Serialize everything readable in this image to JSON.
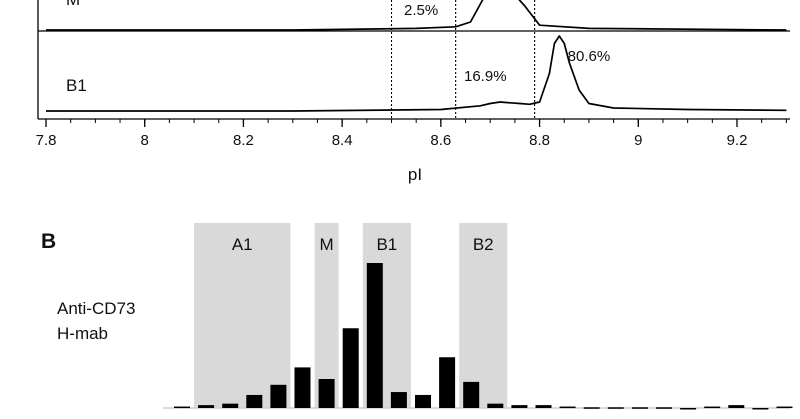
{
  "chart_data": [
    {
      "type": "line",
      "panel_label": "",
      "xlabel": "pI",
      "xlim": [
        7.8,
        9.3
      ],
      "x_ticks": [
        "7.8",
        "8",
        "8.2",
        "8.4",
        "8.6",
        "8.8",
        "9",
        "9.2"
      ],
      "dashed_lines_x": [
        8.5,
        8.63,
        8.79
      ],
      "series": [
        {
          "name": "M",
          "x": [
            7.8,
            8.3,
            8.55,
            8.63,
            8.66,
            8.69,
            8.7,
            8.71,
            8.73,
            8.75,
            8.77,
            8.8,
            8.9,
            9.3
          ],
          "y": [
            0,
            0,
            0.01,
            0.02,
            0.05,
            0.3,
            0.7,
            1.0,
            0.9,
            0.5,
            0.15,
            0.03,
            0.01,
            0
          ],
          "peak_labels": [
            "2.5%"
          ]
        },
        {
          "name": "B1",
          "x": [
            7.8,
            8.3,
            8.6,
            8.68,
            8.7,
            8.72,
            8.74,
            8.76,
            8.78,
            8.8,
            8.82,
            8.83,
            8.84,
            8.85,
            8.86,
            8.88,
            8.9,
            8.95,
            9.1,
            9.3
          ],
          "y": [
            0,
            0,
            0.02,
            0.07,
            0.1,
            0.12,
            0.11,
            0.1,
            0.09,
            0.12,
            0.5,
            0.9,
            1.0,
            0.9,
            0.65,
            0.28,
            0.1,
            0.04,
            0.02,
            0.01
          ],
          "peak_labels": [
            "16.9%",
            "80.6%"
          ]
        }
      ]
    },
    {
      "type": "bar",
      "panel_label": "B",
      "series_label": [
        "Anti-CD73",
        "H-mab"
      ],
      "regions": [
        "A1",
        "M",
        "B1",
        "B2"
      ],
      "values": [
        0.01,
        0.02,
        0.03,
        0.09,
        0.16,
        0.28,
        0.2,
        0.55,
        1.0,
        0.11,
        0.09,
        0.35,
        0.18,
        0.03,
        0.02,
        0.02,
        0.01,
        0.005,
        0.005,
        0.005,
        0.005,
        -0.005,
        0.01,
        0.02,
        -0.01,
        0.01,
        -0.015
      ],
      "region_spans": {
        "A1": [
          1,
          4
        ],
        "M": [
          6,
          6
        ],
        "B1": [
          8,
          9
        ],
        "B2": [
          12,
          13
        ]
      }
    }
  ]
}
